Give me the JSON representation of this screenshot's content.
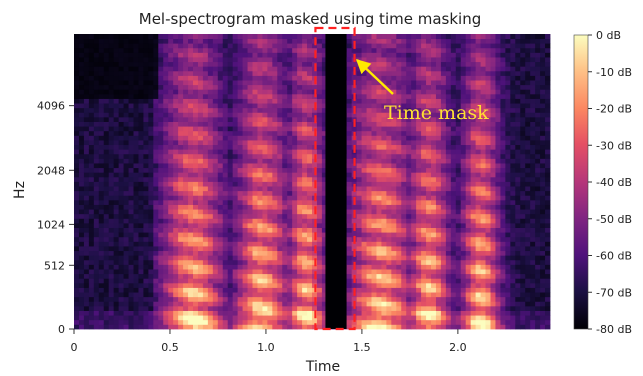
{
  "chart_data": {
    "type": "heatmap",
    "title": "Mel-spectrogram masked using time masking",
    "xlabel": "Time",
    "ylabel": "Hz",
    "x_ticks": [
      {
        "value": 0,
        "label": "0"
      },
      {
        "value": 0.5,
        "label": "0.5"
      },
      {
        "value": 1.0,
        "label": "1.0"
      },
      {
        "value": 1.5,
        "label": "1.5"
      },
      {
        "value": 2.0,
        "label": "2.0"
      }
    ],
    "y_ticks": [
      {
        "value": 0,
        "label": "0"
      },
      {
        "value": 512,
        "label": "512"
      },
      {
        "value": 1024,
        "label": "1024"
      },
      {
        "value": 2048,
        "label": "2048"
      },
      {
        "value": 4096,
        "label": "4096"
      }
    ],
    "xlim": [
      0,
      2.48
    ],
    "ylim": [
      0,
      8192
    ],
    "y_scale": "mel",
    "colormap": "magma",
    "colorbar": {
      "vmin": -80,
      "vmax": 0,
      "ticks": [
        {
          "value": 0,
          "label": "0 dB"
        },
        {
          "value": -10,
          "label": "-10 dB"
        },
        {
          "value": -20,
          "label": "-20 dB"
        },
        {
          "value": -30,
          "label": "-30 dB"
        },
        {
          "value": -40,
          "label": "-40 dB"
        },
        {
          "value": -50,
          "label": "-50 dB"
        },
        {
          "value": -60,
          "label": "-60 dB"
        },
        {
          "value": -70,
          "label": "-70 dB"
        },
        {
          "value": -80,
          "label": "-80 dB"
        }
      ],
      "placement": "right"
    },
    "time_mask": {
      "start": 1.31,
      "end": 1.42,
      "fill_db": -80
    },
    "annotation": {
      "text": "Time mask",
      "color": "#ffea00",
      "outline_color": "#ff2020"
    }
  }
}
